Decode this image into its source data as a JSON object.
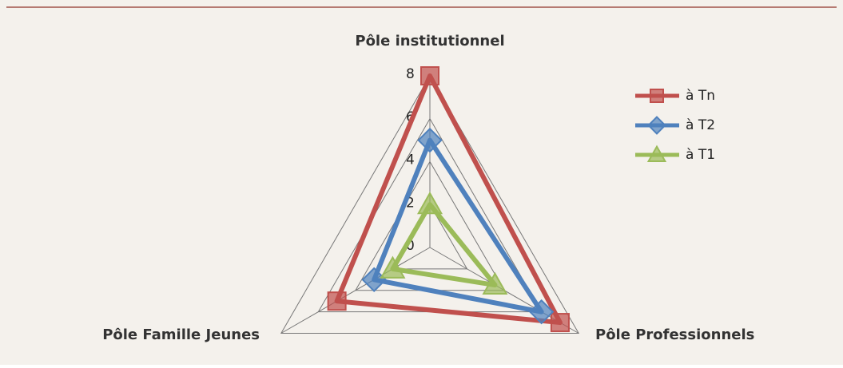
{
  "chart_data": {
    "type": "radar",
    "categories": [
      "Pôle institutionnel",
      "Pôle Professionnels",
      "Pôle Famille Jeunes"
    ],
    "series": [
      {
        "name": "à Tn",
        "color": "#c0504d",
        "marker": "square",
        "values": [
          8,
          7,
          5
        ]
      },
      {
        "name": "à T2",
        "color": "#4f81bd",
        "marker": "diamond",
        "values": [
          5,
          6,
          3
        ]
      },
      {
        "name": "à T1",
        "color": "#9bbb59",
        "marker": "triangle",
        "values": [
          2,
          3.5,
          2
        ]
      }
    ],
    "ylim": [
      0,
      8
    ],
    "yticks": [
      0,
      2,
      4,
      6,
      8
    ],
    "grid": true,
    "legend": "right"
  }
}
